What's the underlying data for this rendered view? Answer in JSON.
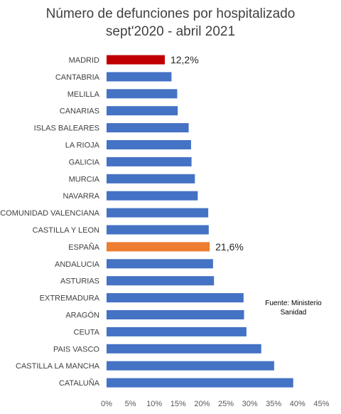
{
  "chart_data": {
    "type": "bar",
    "orientation": "horizontal",
    "title": "Número de defunciones por hospitalizado",
    "subtitle": "sept'2020 - abril 2021",
    "categories": [
      "MADRID",
      "CANTABRIA",
      "MELILLA",
      "CANARIAS",
      "ISLAS BALEARES",
      "LA RIOJA",
      "GALICIA",
      "MURCIA",
      "NAVARRA",
      "COMUNIDAD VALENCIANA",
      "CASTILLA Y LEON",
      "ESPAÑA",
      "ANDALUCIA",
      "ASTURIAS",
      "EXTREMADURA",
      "ARAGÓN",
      "CEUTA",
      "PAIS VASCO",
      "CASTILLA LA MANCHA",
      "CATALUÑA"
    ],
    "values": [
      12.2,
      13.6,
      14.8,
      14.9,
      17.2,
      17.7,
      17.8,
      18.5,
      19.1,
      21.3,
      21.4,
      21.6,
      22.3,
      22.5,
      28.7,
      28.8,
      29.3,
      32.4,
      35.1,
      39.1
    ],
    "data_labels": [
      {
        "category": "MADRID",
        "text": "12,2%"
      },
      {
        "category": "ESPAÑA",
        "text": "21,6%"
      }
    ],
    "xlim": [
      0,
      45
    ],
    "x_ticks": [
      0,
      5,
      10,
      15,
      20,
      25,
      30,
      35,
      40,
      45
    ],
    "x_tick_labels": [
      "0%",
      "5%",
      "10%",
      "15%",
      "20%",
      "25%",
      "30%",
      "35%",
      "40%",
      "45%"
    ],
    "grid": false,
    "colors": {
      "default": "#4472C4",
      "MADRID": "#C00000",
      "ESPAÑA": "#ED7D31"
    }
  },
  "source_note": "Fuente: Ministerio Sanidad"
}
